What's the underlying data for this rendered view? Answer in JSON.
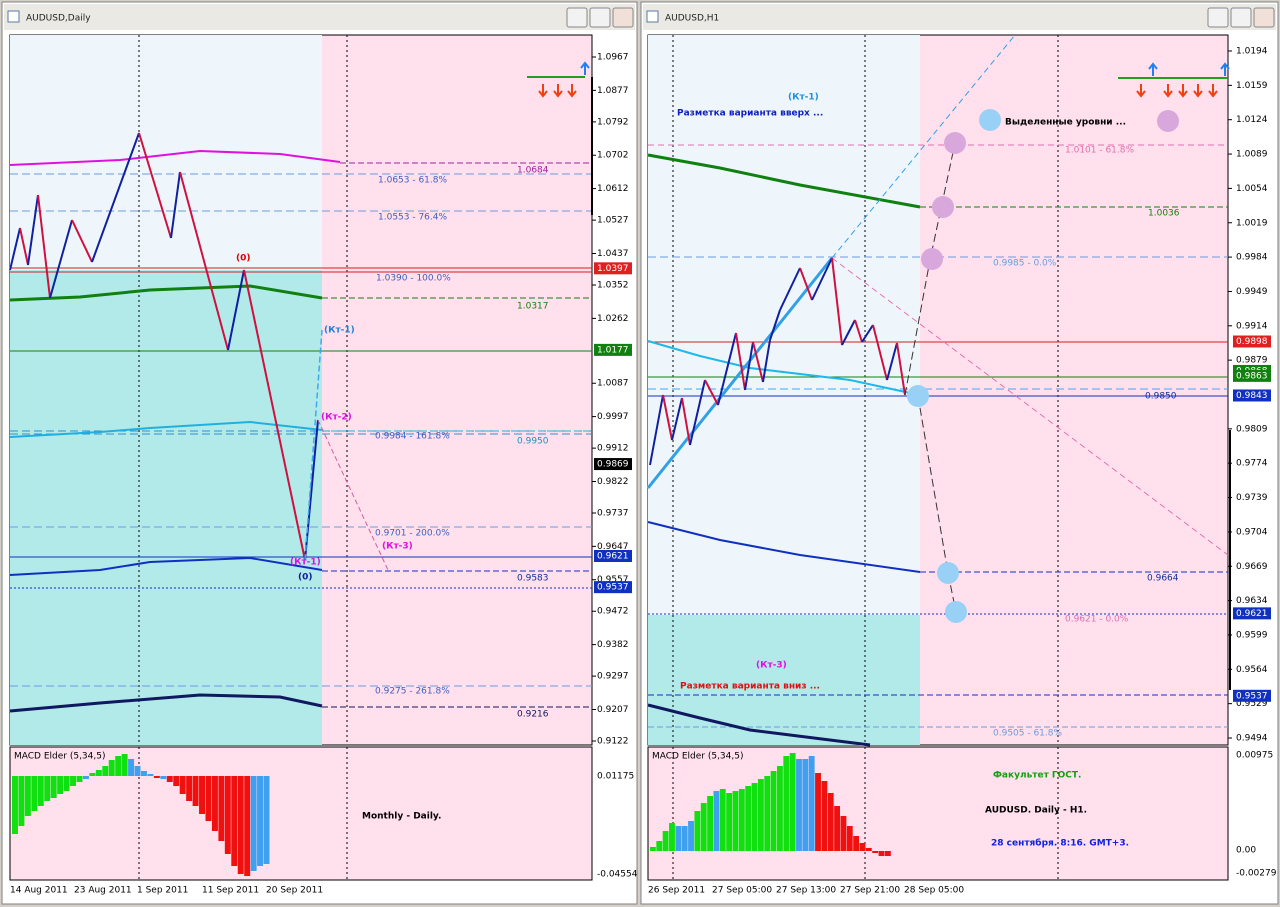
{
  "windows": [
    {
      "title": "AUDUSD,Daily",
      "price_scale": [
        "1.0967",
        "1.0877",
        "1.0792",
        "1.0702",
        "1.0612",
        "1.0527",
        "1.0437",
        "1.0352",
        "1.0262",
        "1.0087",
        "0.9997",
        "0.9912",
        "0.9822",
        "0.9737",
        "0.9647",
        "0.9557",
        "0.9472",
        "0.9382",
        "0.9297",
        "0.9207",
        "0.9122"
      ],
      "marked_prices": [
        "1.0397",
        "1.0177",
        "0.9869",
        "0.9621",
        "0.9537"
      ],
      "levels": [
        "1.0653 - 61.8%",
        "1.0553 - 76.4%",
        "1.0390 - 100.0%",
        "0.9984 - 161.8%",
        "0.9701 - 200.0%",
        "0.9275 - 261.8%",
        "1.0684",
        "1.0317",
        "0.9950",
        "0.9583",
        "0.9216"
      ],
      "annotations": [
        "(0)",
        "(Кт-1)",
        "(Кт-2)",
        "(Кт-3)",
        "(Кт-1)",
        "(0)"
      ],
      "indicator": {
        "name": "MACD Elder (5,34,5)",
        "scale": [
          "0.01175",
          "-0.04554"
        ]
      },
      "captions": [
        "Monthly - Daily."
      ],
      "time_scale": [
        "14 Aug 2011",
        "23 Aug 2011",
        "1 Sep 2011",
        "11 Sep 2011",
        "20 Sep 2011"
      ]
    },
    {
      "title": "AUDUSD,H1",
      "price_scale": [
        "1.0194",
        "1.0159",
        "1.0124",
        "1.0089",
        "1.0054",
        "1.0019",
        "0.9984",
        "0.9949",
        "0.9914",
        "0.9879",
        "0.9809",
        "0.9774",
        "0.9739",
        "0.9704",
        "0.9669",
        "0.9634",
        "0.9599",
        "0.9564",
        "0.9529",
        "0.9494"
      ],
      "marked_prices": [
        "0.9898",
        "0.9868",
        "0.9863",
        "0.9843",
        "0.9621",
        "0.9537"
      ],
      "levels": [
        "1.0101 - 61.8%",
        "1.0036",
        "0.9985 - 0.0%",
        "0.9850",
        "0.9664",
        "0.9621 - 0.0%",
        "0.9505 - 61.8%"
      ],
      "annotations": [
        "(Кт-1)",
        "Разметка варианта вверх ...",
        "Выделенные уровни ...",
        "(Кт-3)",
        "Разметка варианта вниз ..."
      ],
      "indicator": {
        "name": "MACD Elder (5,34,5)",
        "scale": [
          "0.00975",
          "0.00",
          "-0.00279"
        ]
      },
      "captions": [
        "Факультет ГОСТ.",
        "AUDUSD. Daily - H1.",
        "28 сентября. 8:16. GMT+3."
      ],
      "time_scale": [
        "26 Sep 2011",
        "27 Sep 05:00",
        "27 Sep 13:00",
        "27 Sep 21:00",
        "28 Sep 05:00"
      ]
    }
  ]
}
